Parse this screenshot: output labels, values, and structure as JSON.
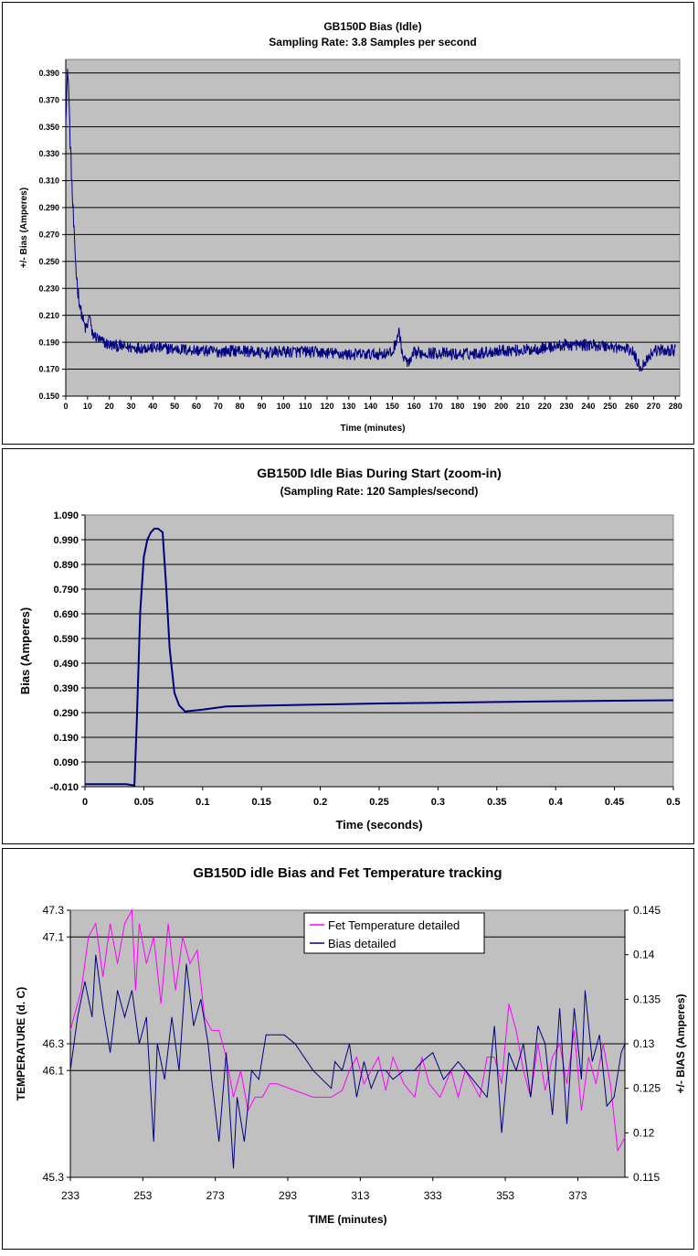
{
  "chart_data": [
    {
      "type": "line",
      "title": "GB150D  Bias (Idle)",
      "subtitle": "Sampling Rate: 3.8 Samples per second",
      "xlabel": "Time (minutes)",
      "ylabel": "+/- Bias (Amperes)",
      "xlim": [
        0,
        282
      ],
      "ylim": [
        0.15,
        0.4
      ],
      "x_ticks": [
        "0",
        "10",
        "20",
        "30",
        "40",
        "50",
        "60",
        "70",
        "80",
        "90",
        "100",
        "110",
        "120",
        "130",
        "140",
        "150",
        "160",
        "170",
        "180",
        "190",
        "200",
        "210",
        "220",
        "230",
        "240",
        "250",
        "260",
        "270",
        "280"
      ],
      "y_ticks": [
        "0.390",
        "0.370",
        "0.350",
        "0.330",
        "0.310",
        "0.290",
        "0.270",
        "0.250",
        "0.230",
        "0.210",
        "0.190",
        "0.170",
        "0.150"
      ],
      "grid": "horizontal",
      "series": [
        {
          "color": "#000080",
          "x": [
            0,
            0.5,
            1,
            1.5,
            2,
            3,
            4,
            5,
            6,
            7,
            8,
            9,
            10,
            11,
            12,
            14,
            16,
            20,
            30,
            40,
            50,
            60,
            70,
            80,
            90,
            100,
            110,
            120,
            130,
            140,
            150,
            153,
            155,
            158,
            160,
            170,
            180,
            190,
            200,
            210,
            220,
            230,
            240,
            250,
            260,
            264,
            270,
            280
          ],
          "y": [
            0.36,
            0.38,
            0.392,
            0.37,
            0.34,
            0.3,
            0.262,
            0.238,
            0.222,
            0.213,
            0.206,
            0.2,
            0.202,
            0.212,
            0.196,
            0.194,
            0.191,
            0.188,
            0.186,
            0.186,
            0.185,
            0.184,
            0.183,
            0.184,
            0.182,
            0.183,
            0.183,
            0.182,
            0.181,
            0.181,
            0.182,
            0.198,
            0.178,
            0.174,
            0.182,
            0.182,
            0.181,
            0.182,
            0.184,
            0.184,
            0.186,
            0.188,
            0.188,
            0.187,
            0.184,
            0.171,
            0.184,
            0.184
          ],
          "noise": 0.0045
        }
      ]
    },
    {
      "type": "line",
      "title": "GB150D Idle Bias During Start (zoom-in)",
      "subtitle": "(Sampling Rate: 120 Samples/second)",
      "xlabel": "Time (seconds)",
      "ylabel": "Bias (Amperes)",
      "xlim": [
        0,
        0.5
      ],
      "ylim": [
        -0.01,
        1.09
      ],
      "x_ticks": [
        "0",
        "0.05",
        "0.1",
        "0.15",
        "0.2",
        "0.25",
        "0.3",
        "0.35",
        "0.4",
        "0.45",
        "0.5"
      ],
      "y_ticks": [
        "1.090",
        "0.990",
        "0.890",
        "0.790",
        "0.690",
        "0.590",
        "0.490",
        "0.390",
        "0.290",
        "0.190",
        "0.090",
        "-0.010"
      ],
      "grid": "horizontal",
      "series": [
        {
          "color": "#000080",
          "x": [
            0,
            0.035,
            0.042,
            0.044,
            0.047,
            0.05,
            0.053,
            0.056,
            0.059,
            0.062,
            0.066,
            0.069,
            0.072,
            0.076,
            0.08,
            0.085,
            0.1,
            0.12,
            0.15,
            0.2,
            0.25,
            0.3,
            0.35,
            0.4,
            0.45,
            0.5
          ],
          "y": [
            0.0,
            0.0,
            -0.005,
            0.25,
            0.7,
            0.92,
            0.99,
            1.02,
            1.035,
            1.035,
            1.02,
            0.8,
            0.55,
            0.37,
            0.32,
            0.295,
            0.302,
            0.315,
            0.318,
            0.323,
            0.327,
            0.33,
            0.333,
            0.336,
            0.338,
            0.34
          ]
        }
      ]
    },
    {
      "type": "line",
      "title": "GB150D idle  Bias and Fet Temperature tracking",
      "xlabel": "TIME (minutes)",
      "ylabel": "TEMPERATURE (d. C)",
      "ylabel_right": "+/- BIAS (Amperes)",
      "xlim": [
        233,
        386
      ],
      "ylim": [
        45.3,
        47.3
      ],
      "ylim_right": [
        0.115,
        0.145
      ],
      "x_ticks": [
        "233",
        "253",
        "273",
        "293",
        "313",
        "333",
        "353",
        "373"
      ],
      "y_ticks": [
        "47.3",
        "47.1",
        "46.3",
        "46.1",
        "45.3"
      ],
      "y_ticks_right": [
        "0.145",
        "0.14",
        "0.135",
        "0.13",
        "0.125",
        "0.12",
        "0.115"
      ],
      "grid": "horizontal",
      "legend": "top-center",
      "series": [
        {
          "name": "Fet Temperature detailed",
          "color": "#ff00ff",
          "x": [
            233,
            236,
            238,
            240,
            242,
            244,
            246,
            248,
            250,
            251,
            252,
            254,
            256,
            258,
            260,
            262,
            264,
            266,
            268,
            270,
            272,
            274,
            276,
            278,
            280,
            282,
            284,
            286,
            288,
            290,
            295,
            300,
            305,
            308,
            310,
            312,
            314,
            316,
            318,
            320,
            322,
            325,
            328,
            330,
            332,
            335,
            338,
            340,
            342,
            344,
            346,
            348,
            350,
            352,
            354,
            356,
            358,
            360,
            362,
            364,
            366,
            368,
            370,
            372,
            374,
            376,
            378,
            380,
            382,
            384,
            386
          ],
          "y": [
            46.4,
            46.7,
            47.1,
            47.2,
            46.8,
            47.2,
            46.9,
            47.2,
            47.3,
            46.7,
            47.2,
            46.9,
            47.1,
            46.6,
            47.2,
            46.7,
            47.1,
            46.9,
            47.0,
            46.5,
            46.4,
            46.4,
            46.2,
            45.9,
            46.1,
            45.8,
            45.9,
            45.9,
            46.0,
            46.0,
            45.95,
            45.9,
            45.9,
            45.95,
            46.1,
            46.2,
            46.0,
            46.1,
            46.2,
            45.95,
            46.2,
            46.0,
            45.9,
            46.2,
            46.0,
            45.9,
            46.1,
            45.9,
            46.1,
            46.0,
            45.9,
            46.2,
            46.2,
            46.0,
            46.6,
            46.4,
            46.1,
            45.9,
            46.3,
            45.95,
            46.2,
            46.3,
            46.0,
            46.4,
            45.8,
            46.2,
            46.0,
            46.3,
            46.0,
            45.5,
            45.6
          ]
        },
        {
          "name": "Bias detailed",
          "color": "#000080",
          "x": [
            233,
            235,
            237,
            239,
            240,
            242,
            244,
            246,
            248,
            250,
            252,
            254,
            256,
            257,
            259,
            261,
            263,
            265,
            267,
            269,
            271,
            272,
            274,
            276,
            278,
            279,
            281,
            283,
            285,
            287,
            289,
            292,
            295,
            300,
            305,
            306,
            308,
            310,
            312,
            314,
            316,
            318,
            320,
            322,
            325,
            328,
            330,
            333,
            336,
            340,
            344,
            348,
            350,
            352,
            354,
            356,
            358,
            360,
            362,
            364,
            366,
            368,
            370,
            372,
            374,
            375,
            377,
            379,
            381,
            383,
            385,
            386
          ],
          "y": [
            0.127,
            0.133,
            0.137,
            0.133,
            0.14,
            0.134,
            0.129,
            0.136,
            0.133,
            0.136,
            0.13,
            0.133,
            0.119,
            0.13,
            0.126,
            0.133,
            0.127,
            0.139,
            0.132,
            0.135,
            0.13,
            0.126,
            0.119,
            0.129,
            0.116,
            0.124,
            0.119,
            0.127,
            0.126,
            0.131,
            0.131,
            0.131,
            0.13,
            0.127,
            0.125,
            0.128,
            0.127,
            0.13,
            0.124,
            0.128,
            0.125,
            0.127,
            0.127,
            0.126,
            0.127,
            0.127,
            0.128,
            0.129,
            0.126,
            0.128,
            0.126,
            0.124,
            0.132,
            0.12,
            0.129,
            0.127,
            0.13,
            0.124,
            0.132,
            0.13,
            0.122,
            0.134,
            0.121,
            0.134,
            0.126,
            0.136,
            0.128,
            0.131,
            0.123,
            0.124,
            0.129,
            0.13
          ]
        }
      ]
    }
  ]
}
